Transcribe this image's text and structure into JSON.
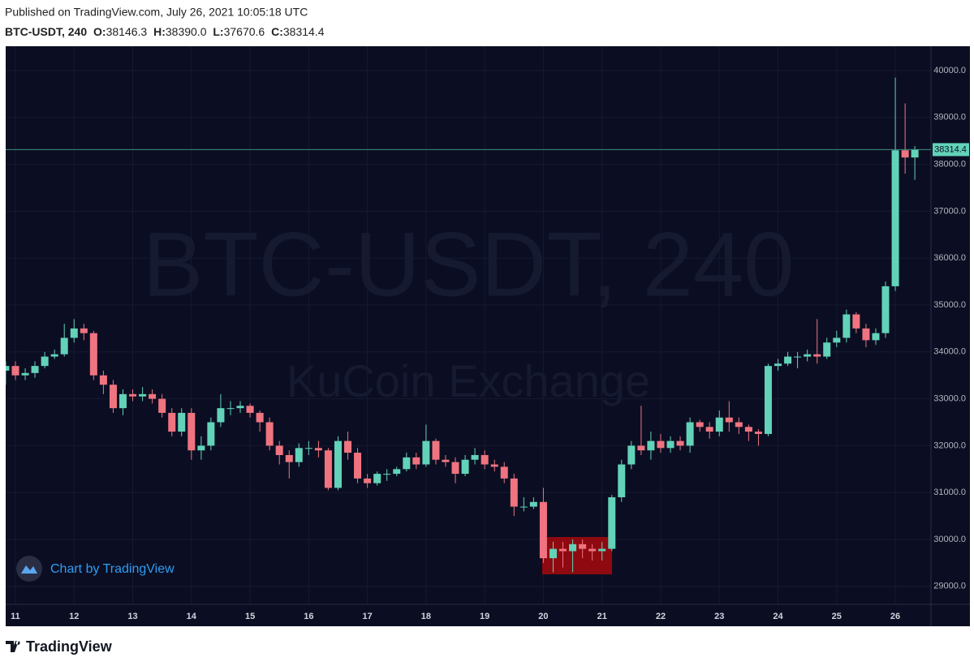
{
  "header": {
    "published": "Published on TradingView.com, July 26, 2021 10:05:18 UTC",
    "ohlc": [
      {
        "label": "O:",
        "value": "38146.3"
      },
      {
        "label": "H:",
        "value": "38390.0"
      },
      {
        "label": "L:",
        "value": "37670.6"
      },
      {
        "label": "C:",
        "value": "38314.4"
      }
    ]
  },
  "footer": {
    "badge": "Chart by TradingView",
    "brand": "TradingView"
  },
  "chart_data": {
    "type": "candlestick",
    "title": "BTC-USDT, 240",
    "subtitle": "KuCoin Exchange",
    "up_color": "#62d2b9",
    "down_color": "#ef7480",
    "grid": true,
    "x": [
      10.833,
      11,
      11.167,
      11.333,
      11.5,
      11.667,
      11.833,
      12,
      12.167,
      12.333,
      12.5,
      12.667,
      12.833,
      13,
      13.167,
      13.333,
      13.5,
      13.667,
      13.833,
      14,
      14.167,
      14.333,
      14.5,
      14.667,
      14.833,
      15,
      15.167,
      15.333,
      15.5,
      15.667,
      15.833,
      16,
      16.167,
      16.333,
      16.5,
      16.667,
      16.833,
      17,
      17.167,
      17.333,
      17.5,
      17.667,
      17.833,
      18,
      18.167,
      18.333,
      18.5,
      18.667,
      18.833,
      19,
      19.167,
      19.333,
      19.5,
      19.667,
      19.833,
      20,
      20.167,
      20.333,
      20.5,
      20.667,
      20.833,
      21,
      21.167,
      21.333,
      21.5,
      21.667,
      21.833,
      22,
      22.167,
      22.333,
      22.5,
      22.667,
      22.833,
      23,
      23.167,
      23.333,
      23.5,
      23.667,
      23.833,
      24,
      24.167,
      24.333,
      24.5,
      24.667,
      24.833,
      25,
      25.167,
      25.333,
      25.5,
      25.667,
      25.833,
      26,
      26.167,
      26.333
    ],
    "open": [
      33600,
      33700,
      33500,
      33550,
      33700,
      33900,
      33950,
      34300,
      34500,
      34400,
      33500,
      33300,
      32800,
      33100,
      33050,
      33100,
      33000,
      32700,
      32300,
      32700,
      31900,
      32000,
      32500,
      32800,
      32800,
      32850,
      32700,
      32500,
      32000,
      31800,
      31650,
      31950,
      31950,
      31900,
      31100,
      32100,
      31850,
      31300,
      31200,
      31400,
      31400,
      31500,
      31750,
      31600,
      32100,
      31700,
      31650,
      31400,
      31700,
      31800,
      31600,
      31550,
      31300,
      30700,
      30700,
      30800,
      29600,
      29800,
      29750,
      29900,
      29800,
      29750,
      29800,
      30900,
      31600,
      32000,
      31900,
      32100,
      31950,
      32100,
      32000,
      32500,
      32400,
      32300,
      32600,
      32500,
      32400,
      32300,
      32250,
      33700,
      33750,
      33900,
      33900,
      33950,
      33900,
      34200,
      34300,
      34800,
      34500,
      34250,
      34400,
      35400,
      38300,
      38146.3
    ],
    "high": [
      33800,
      33800,
      33650,
      33800,
      34000,
      34050,
      34600,
      34700,
      34600,
      34450,
      33600,
      33400,
      33200,
      33200,
      33250,
      33200,
      33100,
      32800,
      32800,
      32800,
      32200,
      32600,
      33100,
      32950,
      32950,
      32900,
      32750,
      32600,
      32100,
      31900,
      32050,
      32100,
      32100,
      31950,
      32200,
      32300,
      31950,
      31400,
      31450,
      31500,
      31550,
      31850,
      31850,
      32450,
      32150,
      31800,
      31750,
      31800,
      31950,
      31900,
      31700,
      31650,
      31400,
      30900,
      30900,
      31100,
      29950,
      29950,
      30000,
      30000,
      29900,
      29950,
      30950,
      31700,
      32100,
      32850,
      32300,
      32250,
      32200,
      32200,
      32600,
      32550,
      32500,
      32750,
      32950,
      32600,
      32450,
      32350,
      33750,
      33850,
      34000,
      34000,
      34050,
      34700,
      34300,
      34450,
      34900,
      34850,
      34600,
      34500,
      35500,
      39850,
      39300,
      38390
    ],
    "low": [
      33300,
      33400,
      33400,
      33450,
      33650,
      33850,
      33900,
      34200,
      34250,
      33400,
      33100,
      32700,
      32650,
      32950,
      32950,
      32900,
      32600,
      32200,
      32200,
      31700,
      31700,
      31900,
      32400,
      32650,
      32700,
      32600,
      32300,
      31900,
      31600,
      31300,
      31550,
      31800,
      31750,
      31050,
      31050,
      31700,
      31200,
      31100,
      31150,
      31250,
      31350,
      31450,
      31500,
      31550,
      31600,
      31550,
      31200,
      31350,
      31600,
      31500,
      31450,
      31200,
      30500,
      30600,
      30650,
      29500,
      29300,
      29400,
      29300,
      29600,
      29550,
      29550,
      29750,
      30800,
      31500,
      31800,
      31700,
      31850,
      31850,
      31900,
      31850,
      32300,
      32150,
      32200,
      32300,
      32250,
      32100,
      32000,
      32200,
      33600,
      33700,
      33650,
      33800,
      33750,
      33850,
      34100,
      34200,
      34400,
      34100,
      34150,
      34300,
      35300,
      37800,
      37670.6
    ],
    "close": [
      33700,
      33500,
      33550,
      33700,
      33900,
      33950,
      34300,
      34500,
      34400,
      33500,
      33300,
      32800,
      33100,
      33050,
      33100,
      33000,
      32700,
      32300,
      32700,
      31900,
      32000,
      32500,
      32800,
      32800,
      32850,
      32700,
      32500,
      32000,
      31800,
      31650,
      31950,
      31950,
      31900,
      31100,
      32100,
      31850,
      31300,
      31200,
      31400,
      31400,
      31500,
      31750,
      31600,
      32100,
      31700,
      31650,
      31400,
      31700,
      31800,
      31600,
      31550,
      31300,
      30700,
      30700,
      30800,
      29600,
      29800,
      29750,
      29900,
      29800,
      29750,
      29800,
      30900,
      31600,
      32000,
      31900,
      32100,
      31950,
      32100,
      32000,
      32500,
      32400,
      32300,
      32600,
      32500,
      32400,
      32300,
      32250,
      33700,
      33750,
      33900,
      33900,
      33950,
      33900,
      34200,
      34300,
      34800,
      34500,
      34250,
      34400,
      35400,
      38300,
      38146.3,
      38314.4
    ],
    "xlim": [
      10.834,
      26.608
    ],
    "xticks": [
      11,
      12,
      13,
      14,
      15,
      16,
      17,
      18,
      19,
      20,
      21,
      22,
      23,
      24,
      25,
      26
    ],
    "ylim": [
      28616,
      40519
    ],
    "yticks": [
      {
        "value": 29000,
        "label": "29000.0"
      },
      {
        "value": 30000,
        "label": "30000.0"
      },
      {
        "value": 31000,
        "label": "31000.0"
      },
      {
        "value": 32000,
        "label": "32000.0"
      },
      {
        "value": 33000,
        "label": "33000.0"
      },
      {
        "value": 34000,
        "label": "34000.0"
      },
      {
        "value": 35000,
        "label": "35000.0"
      },
      {
        "value": 36000,
        "label": "36000.0"
      },
      {
        "value": 37000,
        "label": "37000.0"
      },
      {
        "value": 38000,
        "label": "38000.0"
      },
      {
        "value": 39000,
        "label": "39000.0"
      },
      {
        "value": 40000,
        "label": "40000.0"
      }
    ]
  }
}
